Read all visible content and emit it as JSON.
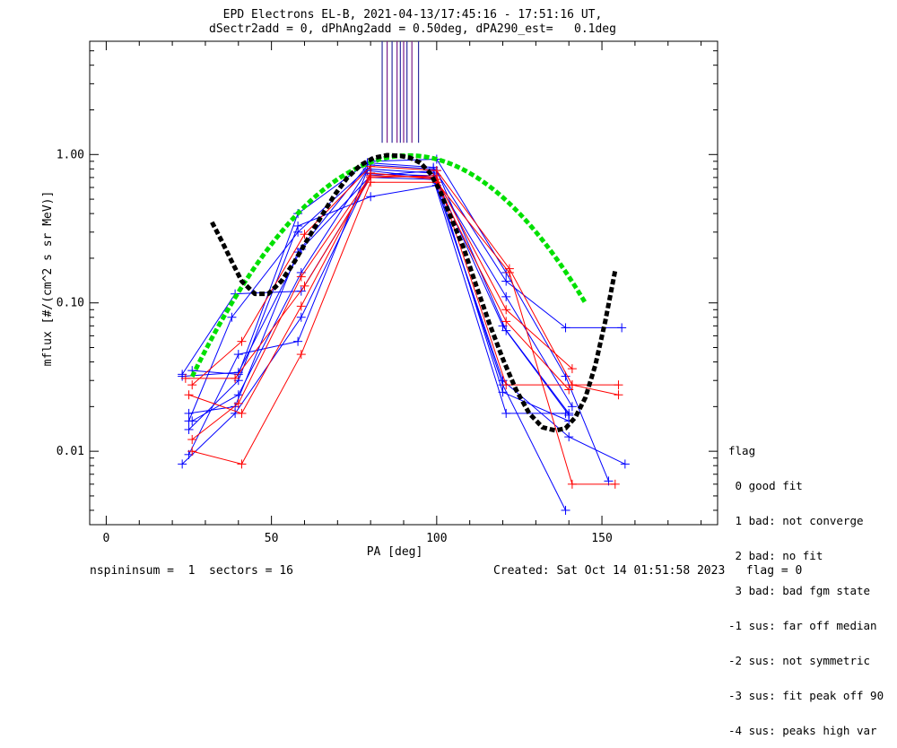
{
  "title_line1": "EPD Electrons EL-B, 2021-04-13/17:45:16 - 17:51:16 UT,",
  "title_line2": "dSectr2add = 0, dPhAng2add = 0.50deg, dPA290_est=   0.1deg",
  "footer_left": "nspininsum =  1  sectors = 16",
  "footer_right": "Created: Sat Oct 14 01:51:58 2023   flag = 0",
  "legend": {
    "title": "flag",
    "items": [
      " 0 good fit",
      " 1 bad: not converge",
      " 2 bad: no fit",
      " 3 bad: bad fgm state",
      "-1 sus: far off median",
      "-2 sus: not symmetric",
      "-3 sus: fit peak off 90",
      "-4 sus: peaks high var"
    ]
  },
  "colors": {
    "blue": "#0000ff",
    "red": "#ff0000",
    "green": "#00e000",
    "black": "#000000",
    "purple": "#7a1f8a"
  },
  "chart_data": {
    "type": "line",
    "title": "EPD Electrons EL-B, 2021-04-13/17:45:16 - 17:51:16 UT,",
    "xlabel": "PA [deg]",
    "ylabel": "mflux [#/(cm^2 s sr MeV)]",
    "xlim": [
      -5,
      185
    ],
    "ylim": [
      0.0032,
      5.8
    ],
    "yscale": "log",
    "xticks": [
      0,
      50,
      100,
      150
    ],
    "yticks": [
      0.01,
      0.1,
      1.0
    ],
    "ytick_labels": [
      "0.01",
      "0.10",
      "1.00"
    ],
    "series": [
      {
        "color": "blue",
        "x": [
          23,
          40,
          59,
          80,
          100,
          121,
          140
        ],
        "y": [
          0.032,
          0.034,
          0.23,
          0.72,
          0.78,
          0.065,
          0.0175
        ]
      },
      {
        "color": "blue",
        "x": [
          25,
          38,
          58,
          79,
          99,
          120,
          140
        ],
        "y": [
          0.016,
          0.08,
          0.3,
          0.8,
          0.75,
          0.07,
          0.018
        ]
      },
      {
        "color": "blue",
        "x": [
          26,
          40,
          58,
          79,
          99,
          121,
          139,
          156
        ],
        "y": [
          0.035,
          0.033,
          0.4,
          0.88,
          0.82,
          0.14,
          0.068,
          0.068
        ]
      },
      {
        "color": "blue",
        "x": [
          25,
          39,
          58,
          80,
          100,
          121,
          139,
          152
        ],
        "y": [
          0.018,
          0.02,
          0.22,
          0.9,
          0.93,
          0.16,
          0.032,
          0.0063
        ]
      },
      {
        "color": "blue",
        "x": [
          23,
          39,
          59,
          80,
          99,
          121,
          141
        ],
        "y": [
          0.0082,
          0.018,
          0.08,
          0.74,
          0.72,
          0.11,
          0.02
        ]
      },
      {
        "color": "blue",
        "x": [
          25,
          40,
          58,
          79,
          99,
          120,
          140,
          157
        ],
        "y": [
          0.0095,
          0.045,
          0.055,
          0.78,
          0.7,
          0.03,
          0.0125,
          0.0082
        ]
      },
      {
        "color": "blue",
        "x": [
          26,
          40,
          59,
          80,
          99,
          120,
          140
        ],
        "y": [
          0.016,
          0.024,
          0.16,
          0.85,
          0.8,
          0.025,
          0.016
        ]
      },
      {
        "color": "blue",
        "x": [
          23,
          39,
          59,
          80,
          99,
          121,
          139
        ],
        "y": [
          0.033,
          0.115,
          0.12,
          0.7,
          0.68,
          0.018,
          0.018
        ]
      },
      {
        "color": "blue",
        "x": [
          25,
          40,
          58,
          80,
          100,
          120,
          139
        ],
        "y": [
          0.014,
          0.03,
          0.33,
          0.52,
          0.62,
          0.028,
          0.004
        ]
      },
      {
        "color": "red",
        "x": [
          26,
          41,
          60,
          80,
          100,
          122,
          141,
          155
        ],
        "y": [
          0.028,
          0.055,
          0.29,
          0.83,
          0.78,
          0.17,
          0.028,
          0.028
        ]
      },
      {
        "color": "red",
        "x": [
          25,
          41,
          59,
          80,
          100,
          121,
          141
        ],
        "y": [
          0.024,
          0.018,
          0.095,
          0.75,
          0.68,
          0.09,
          0.036
        ]
      },
      {
        "color": "red",
        "x": [
          26,
          41,
          59,
          80,
          100,
          122,
          141,
          154
        ],
        "y": [
          0.01,
          0.0082,
          0.045,
          0.65,
          0.65,
          0.16,
          0.006,
          0.006
        ]
      },
      {
        "color": "red",
        "x": [
          24,
          39,
          60,
          80,
          100,
          121,
          141,
          155
        ],
        "y": [
          0.031,
          0.031,
          0.13,
          0.7,
          0.72,
          0.028,
          0.028,
          0.024
        ]
      },
      {
        "color": "red",
        "x": [
          26,
          40,
          59,
          80,
          99,
          121,
          140
        ],
        "y": [
          0.012,
          0.021,
          0.15,
          0.72,
          0.7,
          0.075,
          0.026
        ]
      }
    ],
    "fit_green": {
      "x_range": [
        26,
        145
      ],
      "center": 91.5,
      "width": 25,
      "peak": 0.985
    },
    "fit_black": {
      "x": [
        32,
        35,
        38,
        41,
        45,
        49,
        53,
        57,
        61,
        65,
        69,
        73,
        77,
        81,
        85,
        89,
        92,
        95,
        98,
        101,
        104,
        108,
        112,
        116,
        120,
        124,
        128,
        132,
        136,
        139,
        142,
        145,
        148,
        151,
        154
      ],
      "y": [
        0.35,
        0.26,
        0.19,
        0.14,
        0.115,
        0.115,
        0.14,
        0.19,
        0.27,
        0.38,
        0.53,
        0.7,
        0.85,
        0.95,
        0.99,
        0.98,
        0.95,
        0.88,
        0.75,
        0.57,
        0.39,
        0.24,
        0.13,
        0.072,
        0.042,
        0.026,
        0.018,
        0.0145,
        0.0138,
        0.0143,
        0.017,
        0.023,
        0.038,
        0.075,
        0.165
      ]
    },
    "peak_markers": {
      "x": [
        83.5,
        85,
        86.5,
        88,
        89,
        90,
        91,
        92.5,
        94.5
      ],
      "y_bottom": 1.2
    }
  }
}
